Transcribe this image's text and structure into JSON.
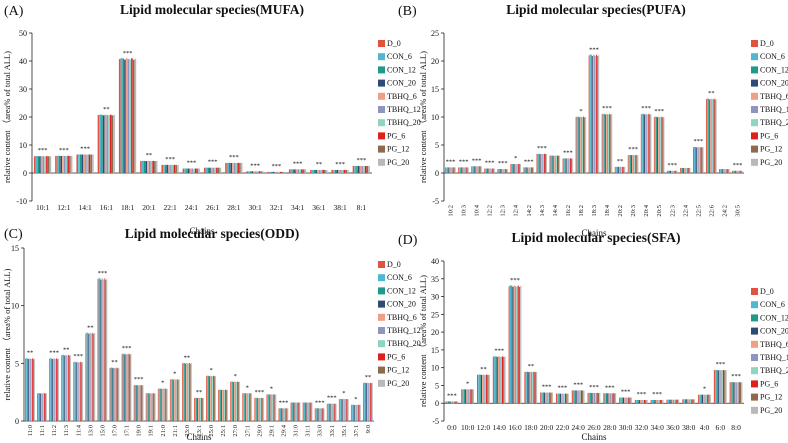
{
  "colors": {
    "D_0": "#E2533F",
    "CON_6": "#4FB7CF",
    "CON_12": "#1E9A88",
    "CON_20": "#2E4A75",
    "TBHQ_6": "#EF9F86",
    "TBHQ_12": "#8E96BF",
    "TBHQ_20": "#8FD3C2",
    "PG_6": "#E01F1F",
    "PG_12": "#8E6A4E",
    "PG_20": "#B9B9B9"
  },
  "chart_data": [
    {
      "panel": "(A)",
      "type": "bar",
      "title": "Lipid molecular species(MUFA)",
      "xlabel": "Chains",
      "ylabel": "relative content （area% of total ALL)",
      "ylim": [
        -10,
        50
      ],
      "yticks": [
        -10,
        0,
        10,
        20,
        30,
        40,
        50
      ],
      "legend": [
        "D_0",
        "CON_6",
        "CON_12",
        "CON_20",
        "TBHQ_6",
        "TBHQ_12",
        "TBHQ_20",
        "PG_6",
        "PG_12",
        "PG_20"
      ],
      "categories": [
        "10:1",
        "12:1",
        "14:1",
        "16:1",
        "18:1",
        "20:1",
        "22:1",
        "24:1",
        "26:1",
        "28:1",
        "30:1",
        "32:1",
        "34:1",
        "36:1",
        "38:1",
        "8:1"
      ],
      "values": [
        6,
        6.1,
        6.6,
        20.7,
        40.7,
        4.3,
        2.9,
        1.6,
        1.9,
        3.6,
        0.6,
        0.4,
        1.3,
        1.1,
        1.1,
        2.5
      ],
      "significance": [
        "***",
        "***",
        "***",
        "**",
        "***",
        "**",
        "***",
        "***",
        "***",
        "***",
        "***",
        "***",
        "***",
        "**",
        "***",
        "***"
      ]
    },
    {
      "panel": "(B)",
      "type": "bar",
      "title": "Lipid molecular species(PUFA)",
      "xlabel": "Chains",
      "ylabel": "relative content （area% of total ALL)",
      "ylim": [
        -5,
        25
      ],
      "yticks": [
        -5,
        0,
        5,
        10,
        15,
        20,
        25
      ],
      "legend": [
        "D_0",
        "CON_6",
        "CON_12",
        "CON_20",
        "TBHQ_6",
        "TBHQ_12",
        "TBHQ_20",
        "PG_6",
        "PG_12",
        "PG_20"
      ],
      "categories": [
        "10:2",
        "10:3",
        "10:4",
        "12:2",
        "12:3",
        "12:4",
        "14:2",
        "14:3",
        "14:4",
        "16:2",
        "18:2",
        "18:3",
        "18:4",
        "20:2",
        "20:3",
        "20:4",
        "20:5",
        "22:3",
        "22:4",
        "22:5",
        "22:6",
        "24:2",
        "30:5"
      ],
      "values": [
        1.0,
        1.0,
        1.2,
        0.8,
        0.7,
        1.6,
        1.0,
        3.4,
        3.1,
        2.6,
        10.0,
        21.0,
        10.5,
        1.1,
        3.2,
        10.5,
        10.0,
        0.4,
        0.9,
        4.6,
        13.2,
        0.7,
        0.4
      ],
      "significance": [
        "***",
        "***",
        "***",
        "***",
        "***",
        "*",
        "***",
        "***",
        "",
        "***",
        "*",
        "***",
        "***",
        "**",
        "***",
        "***",
        "***",
        "***",
        "",
        "***",
        "**",
        "",
        "***"
      ]
    },
    {
      "panel": "(C)",
      "type": "bar",
      "title": "Lipid molecular species(ODD)",
      "xlabel": "Chains",
      "ylabel": "relative content （area% of total ALL)",
      "ylim": [
        0,
        15
      ],
      "yticks": [
        0,
        5,
        10,
        15
      ],
      "legend": [
        "D_0",
        "CON_6",
        "CON_12",
        "CON_20",
        "TBHQ_6",
        "TBHQ_12",
        "TBHQ_20",
        "PG_6",
        "PG_12",
        "PG_20"
      ],
      "categories": [
        "11:0",
        "11:1",
        "11:2",
        "11:3",
        "11:4",
        "13:0",
        "15:0",
        "17:0",
        "17:1",
        "19:0",
        "19:1",
        "21:0",
        "21:1",
        "23:0",
        "23:1",
        "25:0",
        "25:1",
        "27:0",
        "27:1",
        "29:0",
        "29:1",
        "29:4",
        "31:0",
        "31:1",
        "33:0",
        "33:1",
        "35:1",
        "37:1",
        "9:0"
      ],
      "values": [
        5.4,
        2.4,
        5.4,
        5.7,
        5.1,
        7.6,
        12.3,
        4.6,
        5.8,
        3.1,
        2.4,
        2.8,
        3.6,
        5.0,
        2.0,
        3.9,
        2.7,
        3.4,
        2.4,
        2.0,
        2.3,
        1.1,
        1.6,
        1.6,
        1.1,
        1.5,
        1.9,
        1.4,
        3.3
      ],
      "significance": [
        "**",
        "",
        "***",
        "**",
        "***",
        "**",
        "***",
        "**",
        "***",
        "***",
        "",
        "*",
        "*",
        "**",
        "**",
        "*",
        "",
        "*",
        "*",
        "***",
        "*",
        "***",
        "",
        "",
        "***",
        "***",
        "*",
        "*",
        "**"
      ]
    },
    {
      "panel": "(D)",
      "type": "bar",
      "title": "Lipid molecular species(SFA)",
      "xlabel": "Chains",
      "ylabel": "relative content （area% of total ALL)",
      "ylim": [
        -5,
        40
      ],
      "yticks": [
        -5,
        0,
        5,
        10,
        15,
        20,
        25,
        30,
        35,
        40
      ],
      "legend": [
        "D_0",
        "CON_6",
        "CON_12",
        "CON_20",
        "TBHQ_6",
        "TBHQ_12",
        "TBHQ_20",
        "PG_6",
        "PG_12",
        "PG_20"
      ],
      "categories": [
        "0:0",
        "10:0",
        "12:0",
        "14:0",
        "16:0",
        "18:0",
        "20:0",
        "22:0",
        "24:0",
        "26:0",
        "28:0",
        "30:0",
        "32:0",
        "34:0",
        "36:0",
        "38:0",
        "4:0",
        "6:0",
        "8:0"
      ],
      "values": [
        0.5,
        3.9,
        8.0,
        13.1,
        32.9,
        8.8,
        3.0,
        2.7,
        3.6,
        2.9,
        2.8,
        1.6,
        0.9,
        0.9,
        1.0,
        1.1,
        2.4,
        9.3,
        5.9
      ],
      "significance": [
        "***",
        "*",
        "**",
        "***",
        "***",
        "**",
        "***",
        "***",
        "***",
        "***",
        "***",
        "***",
        "***",
        "***",
        "",
        "",
        "*",
        "***",
        "***"
      ]
    }
  ]
}
